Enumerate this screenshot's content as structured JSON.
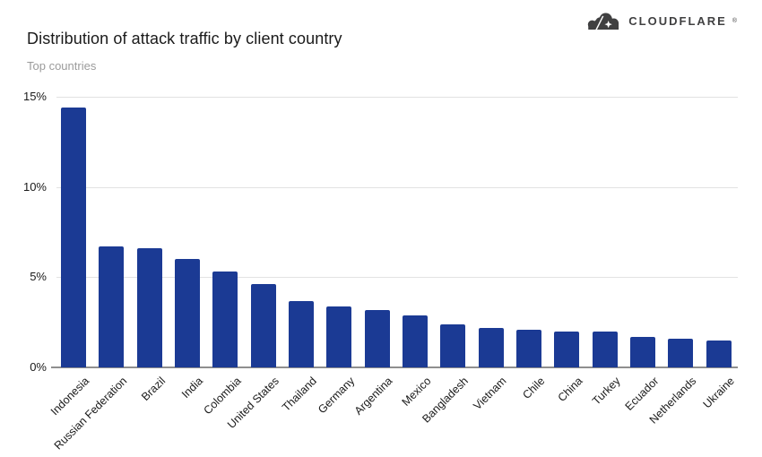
{
  "header": {
    "title": "Distribution of attack traffic by client country",
    "subtitle": "Top countries",
    "logo": {
      "brand": "CLOUDFLARE",
      "registered_mark": "®",
      "icon": "cloudflare-cloud-logo",
      "color": "#404041"
    }
  },
  "chart_data": {
    "type": "bar",
    "title": "Distribution of attack traffic by client country",
    "subtitle": "Top countries",
    "categories": [
      "Indonesia",
      "Russian Federation",
      "Brazil",
      "India",
      "Colombia",
      "United States",
      "Thailand",
      "Germany",
      "Argentina",
      "Mexico",
      "Bangladesh",
      "Vietnam",
      "Chile",
      "China",
      "Turkey",
      "Ecuador",
      "Netherlands",
      "Ukraine"
    ],
    "values": [
      14.4,
      6.7,
      6.6,
      6.0,
      5.3,
      4.6,
      3.7,
      3.4,
      3.2,
      2.9,
      2.4,
      2.2,
      2.1,
      2.0,
      2.0,
      1.7,
      1.6,
      1.5
    ],
    "unit": "%",
    "xlabel": "",
    "ylabel": "",
    "ylim": [
      0,
      15
    ],
    "yticks": [
      "0%",
      "5%",
      "10%",
      "15%"
    ],
    "ytick_values": [
      0,
      5,
      10,
      15
    ],
    "grid": "horizontal",
    "legend": "none",
    "bar_color": "#1b3a94",
    "grid_color": "#e2e2e2",
    "axis_color": "#8f8f8f",
    "x_label_rotation_deg": -45
  }
}
